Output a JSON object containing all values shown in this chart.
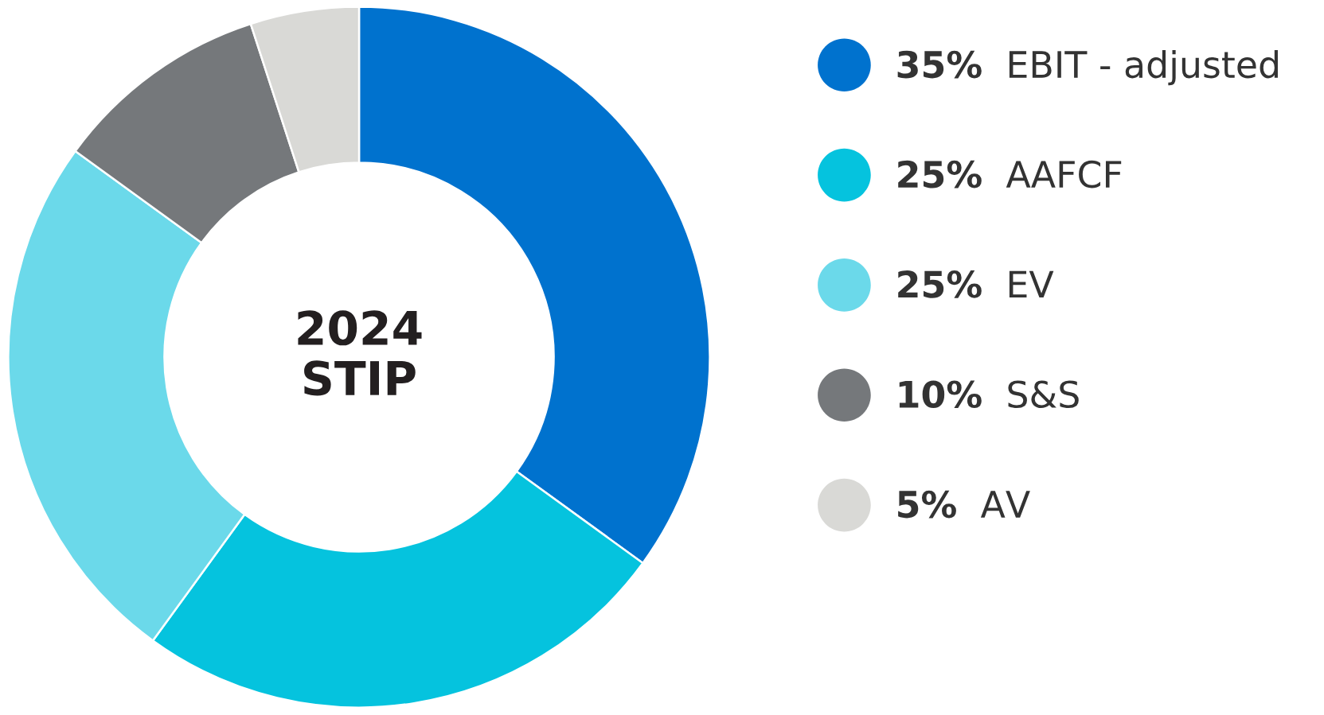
{
  "chart_data": {
    "type": "donut",
    "title": "2024 STIP",
    "categories": [
      "EBIT - adjusted",
      "AAFCF",
      "EV",
      "S&S",
      "AV"
    ],
    "values": [
      35,
      25,
      25,
      10,
      5
    ],
    "value_labels": [
      "35%",
      "25%",
      "25%",
      "10%",
      "5%"
    ],
    "colors": [
      "#0072ce",
      "#05c3de",
      "#6bd9ea",
      "#75787b",
      "#d9d9d6"
    ],
    "legend": "right"
  }
}
